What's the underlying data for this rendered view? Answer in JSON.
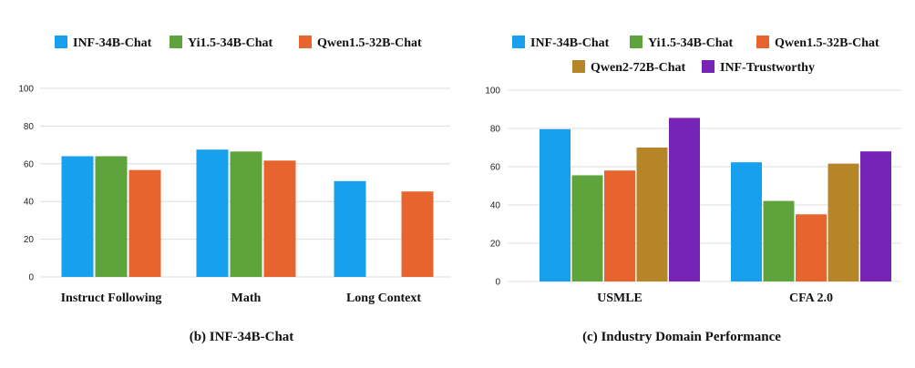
{
  "colors": {
    "INF-34B-Chat": "#16a0ee",
    "Yi1.5-34B-Chat": "#5ea33c",
    "Qwen1.5-32B-Chat": "#e8642e",
    "Qwen2-72B-Chat": "#b68527",
    "INF-Trustworthy": "#7723b8"
  },
  "chart_data": [
    {
      "type": "bar",
      "caption": "(b) INF-34B-Chat",
      "categories": [
        "Instruct Following",
        "Math",
        "Long Context"
      ],
      "ylim": [
        0,
        100
      ],
      "yticks": [
        0,
        20,
        40,
        60,
        80,
        100
      ],
      "grid": true,
      "legend_position": "top",
      "series": [
        {
          "name": "INF-34B-Chat",
          "values": [
            64.0,
            67.5,
            50.8
          ]
        },
        {
          "name": "Yi1.5-34B-Chat",
          "values": [
            64.0,
            66.5,
            null
          ]
        },
        {
          "name": "Qwen1.5-32B-Chat",
          "values": [
            56.7,
            61.7,
            45.3
          ]
        }
      ]
    },
    {
      "type": "bar",
      "caption": "(c) Industry Domain Performance",
      "categories": [
        "USMLE",
        "CFA 2.0"
      ],
      "ylim": [
        0,
        100
      ],
      "yticks": [
        0,
        20,
        40,
        60,
        80,
        100
      ],
      "grid": true,
      "legend_position": "top",
      "series": [
        {
          "name": "INF-34B-Chat",
          "values": [
            79.6,
            62.3
          ]
        },
        {
          "name": "Yi1.5-34B-Chat",
          "values": [
            55.5,
            42.1
          ]
        },
        {
          "name": "Qwen1.5-32B-Chat",
          "values": [
            58.0,
            35.1
          ]
        },
        {
          "name": "Qwen2-72B-Chat",
          "values": [
            70.0,
            61.6
          ]
        },
        {
          "name": "INF-Trustworthy",
          "values": [
            85.5,
            68.0
          ]
        }
      ]
    }
  ]
}
